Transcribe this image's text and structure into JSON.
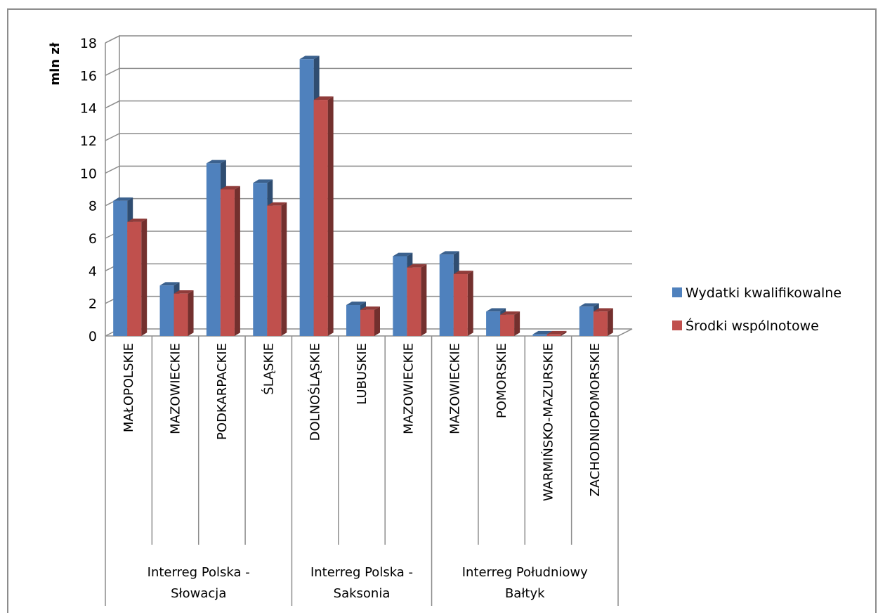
{
  "chart_data": {
    "type": "bar",
    "ylabel": "mln zł",
    "ylim": [
      0,
      18
    ],
    "yticks": [
      0,
      2,
      4,
      6,
      8,
      10,
      12,
      14,
      16,
      18
    ],
    "grid": true,
    "legend_position": "right",
    "categories": [
      "MAŁOPOLSKIE",
      "MAZOWIECKIE",
      "PODKARPACKIE",
      "ŚLĄSKIE",
      "DOLNOŚLĄSKIE",
      "LUBUSKIE",
      "MAZOWIECKIE",
      "MAZOWIECKIE",
      "POMORSKIE",
      "WARMIŃSKO-MAZURSKIE",
      "ZACHODNIOPOMORSKIE"
    ],
    "groups": [
      {
        "label_lines": [
          "Interreg Polska -",
          "Słowacja"
        ],
        "start": 0,
        "count": 4
      },
      {
        "label_lines": [
          "Interreg Polska -",
          "Saksonia"
        ],
        "start": 4,
        "count": 3
      },
      {
        "label_lines": [
          "Interreg Południowy",
          "Bałtyk"
        ],
        "start": 7,
        "count": 4
      }
    ],
    "series": [
      {
        "name": "Wydatki kwalifikowalne",
        "color": "#4f81bd",
        "values": [
          8.3,
          3.1,
          10.6,
          9.4,
          17.0,
          1.9,
          4.9,
          5.0,
          1.5,
          0.1,
          1.8
        ]
      },
      {
        "name": "Środki wspólnotowe",
        "color": "#c0504d",
        "values": [
          7.0,
          2.6,
          9.0,
          8.0,
          14.5,
          1.6,
          4.2,
          3.8,
          1.3,
          0.1,
          1.5
        ]
      }
    ]
  }
}
